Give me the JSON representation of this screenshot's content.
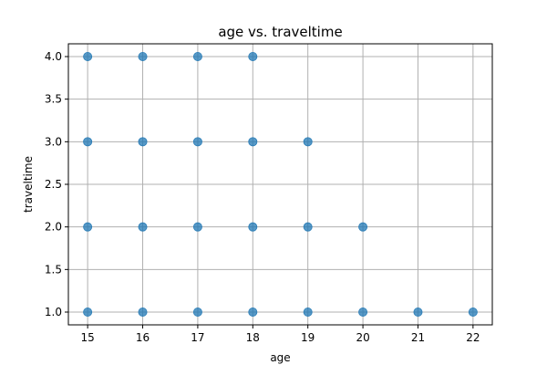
{
  "chart_data": {
    "type": "scatter",
    "title": "age vs. traveltime",
    "xlabel": "age",
    "ylabel": "traveltime",
    "xlim": [
      14.65,
      22.35
    ],
    "ylim": [
      0.85,
      4.15
    ],
    "xticks": [
      15,
      16,
      17,
      18,
      19,
      20,
      21,
      22
    ],
    "yticks": [
      1.0,
      1.5,
      2.0,
      2.5,
      3.0,
      3.5,
      4.0
    ],
    "grid": true,
    "point_color": "#1f77b4",
    "points": [
      {
        "x": 15,
        "y": 1.0
      },
      {
        "x": 15,
        "y": 2.0
      },
      {
        "x": 15,
        "y": 3.0
      },
      {
        "x": 15,
        "y": 4.0
      },
      {
        "x": 16,
        "y": 1.0
      },
      {
        "x": 16,
        "y": 2.0
      },
      {
        "x": 16,
        "y": 3.0
      },
      {
        "x": 16,
        "y": 4.0
      },
      {
        "x": 17,
        "y": 1.0
      },
      {
        "x": 17,
        "y": 2.0
      },
      {
        "x": 17,
        "y": 3.0
      },
      {
        "x": 17,
        "y": 4.0
      },
      {
        "x": 18,
        "y": 1.0
      },
      {
        "x": 18,
        "y": 2.0
      },
      {
        "x": 18,
        "y": 3.0
      },
      {
        "x": 18,
        "y": 4.0
      },
      {
        "x": 19,
        "y": 1.0
      },
      {
        "x": 19,
        "y": 2.0
      },
      {
        "x": 19,
        "y": 3.0
      },
      {
        "x": 20,
        "y": 1.0
      },
      {
        "x": 20,
        "y": 2.0
      },
      {
        "x": 21,
        "y": 1.0
      },
      {
        "x": 22,
        "y": 1.0
      }
    ]
  }
}
